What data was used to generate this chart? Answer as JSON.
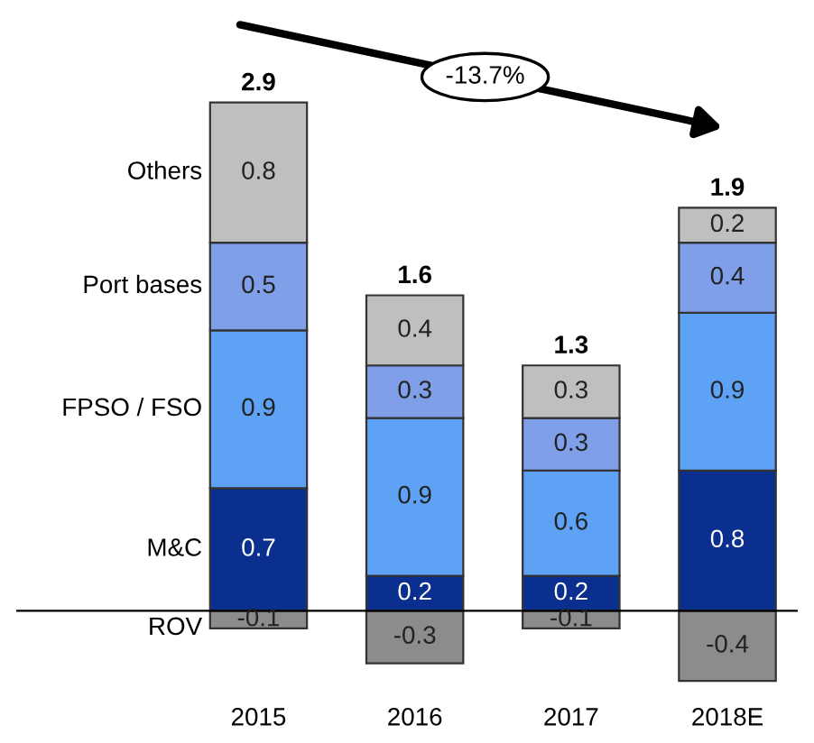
{
  "chart_data": {
    "type": "bar",
    "stacked": true,
    "data_labels": true,
    "legend": "left",
    "categories": [
      "2015",
      "2016",
      "2017",
      "2018E"
    ],
    "series": [
      {
        "name": "ROV",
        "color": "#8c8c8c",
        "values": [
          -0.1,
          -0.3,
          -0.1,
          -0.4
        ]
      },
      {
        "name": "M&C",
        "color": "#0b2f8e",
        "values": [
          0.7,
          0.2,
          0.2,
          0.8
        ]
      },
      {
        "name": "FPSO / FSO",
        "color": "#5ea2f6",
        "values": [
          0.9,
          0.9,
          0.6,
          0.9
        ]
      },
      {
        "name": "Port bases",
        "color": "#7f9fe8",
        "values": [
          0.5,
          0.3,
          0.3,
          0.4
        ]
      },
      {
        "name": "Others",
        "color": "#bfbfbf",
        "values": [
          0.8,
          0.4,
          0.3,
          0.2
        ]
      }
    ],
    "totals": [
      "2.9",
      "1.6",
      "1.3",
      "1.9"
    ],
    "annotations": [
      "-13.7%"
    ]
  }
}
